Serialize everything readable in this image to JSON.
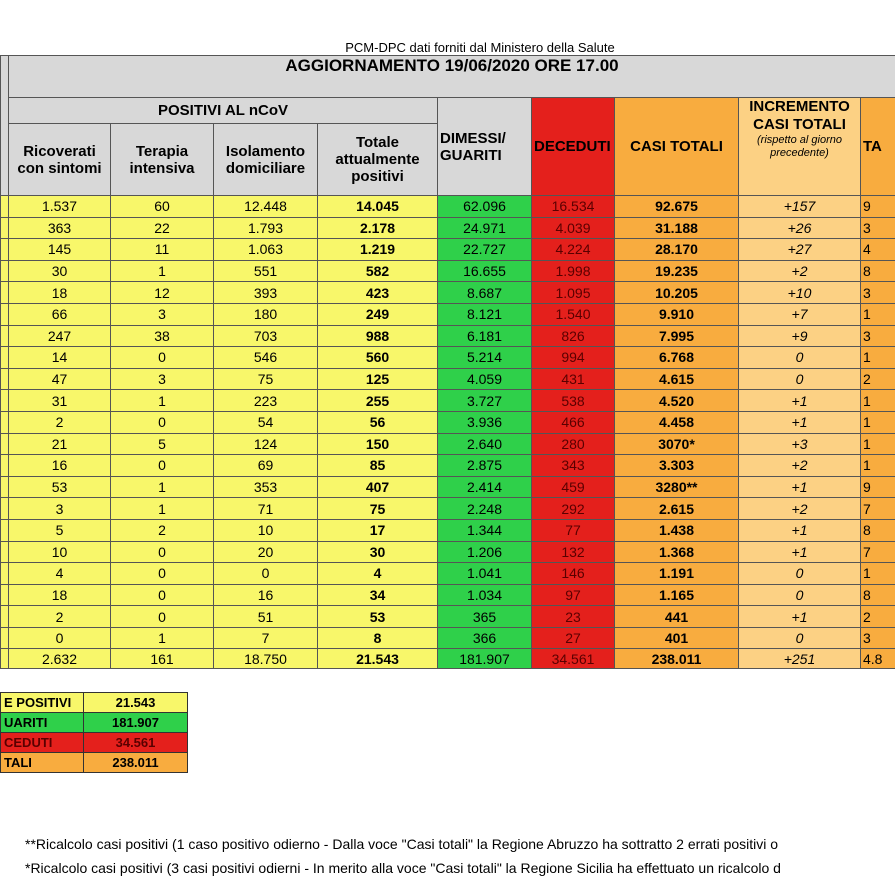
{
  "header": {
    "source": "PCM-DPC dati forniti dal Ministero della Salute",
    "update": "AGGIORNAMENTO 19/06/2020 ORE 17.00"
  },
  "table": {
    "group_header": "POSITIVI AL nCoV",
    "sub_columns": [
      "Ricoverati con sintomi",
      "Terapia intensiva",
      "Isolamento domiciliare",
      "Totale attualmente positivi"
    ],
    "columns": [
      "DIMESSI/ GUARITI",
      "DECEDUTI",
      "CASI TOTALI"
    ],
    "increment_header": {
      "title": "INCREMENTO CASI TOTALI",
      "note": "(rispetto al giorno precedente)"
    },
    "cut_column": "TA",
    "rows": [
      [
        "1.537",
        "60",
        "12.448",
        "14.045",
        "62.096",
        "16.534",
        "92.675",
        "+157",
        "9"
      ],
      [
        "363",
        "22",
        "1.793",
        "2.178",
        "24.971",
        "4.039",
        "31.188",
        "+26",
        "3"
      ],
      [
        "145",
        "11",
        "1.063",
        "1.219",
        "22.727",
        "4.224",
        "28.170",
        "+27",
        "4"
      ],
      [
        "30",
        "1",
        "551",
        "582",
        "16.655",
        "1.998",
        "19.235",
        "+2",
        "8"
      ],
      [
        "18",
        "12",
        "393",
        "423",
        "8.687",
        "1.095",
        "10.205",
        "+10",
        "3"
      ],
      [
        "66",
        "3",
        "180",
        "249",
        "8.121",
        "1.540",
        "9.910",
        "+7",
        "1"
      ],
      [
        "247",
        "38",
        "703",
        "988",
        "6.181",
        "826",
        "7.995",
        "+9",
        "3"
      ],
      [
        "14",
        "0",
        "546",
        "560",
        "5.214",
        "994",
        "6.768",
        "0",
        "1"
      ],
      [
        "47",
        "3",
        "75",
        "125",
        "4.059",
        "431",
        "4.615",
        "0",
        "2"
      ],
      [
        "31",
        "1",
        "223",
        "255",
        "3.727",
        "538",
        "4.520",
        "+1",
        "1"
      ],
      [
        "2",
        "0",
        "54",
        "56",
        "3.936",
        "466",
        "4.458",
        "+1",
        "1"
      ],
      [
        "21",
        "5",
        "124",
        "150",
        "2.640",
        "280",
        "3070*",
        "+3",
        "1"
      ],
      [
        "16",
        "0",
        "69",
        "85",
        "2.875",
        "343",
        "3.303",
        "+2",
        "1"
      ],
      [
        "53",
        "1",
        "353",
        "407",
        "2.414",
        "459",
        "3280**",
        "+1",
        "9"
      ],
      [
        "3",
        "1",
        "71",
        "75",
        "2.248",
        "292",
        "2.615",
        "+2",
        "7"
      ],
      [
        "5",
        "2",
        "10",
        "17",
        "1.344",
        "77",
        "1.438",
        "+1",
        "8"
      ],
      [
        "10",
        "0",
        "20",
        "30",
        "1.206",
        "132",
        "1.368",
        "+1",
        "7"
      ],
      [
        "4",
        "0",
        "0",
        "4",
        "1.041",
        "146",
        "1.191",
        "0",
        "1"
      ],
      [
        "18",
        "0",
        "16",
        "34",
        "1.034",
        "97",
        "1.165",
        "0",
        "8"
      ],
      [
        "2",
        "0",
        "51",
        "53",
        "365",
        "23",
        "441",
        "+1",
        "2"
      ],
      [
        "0",
        "1",
        "7",
        "8",
        "366",
        "27",
        "401",
        "0",
        "3"
      ]
    ],
    "total": [
      "2.632",
      "161",
      "18.750",
      "21.543",
      "181.907",
      "34.561",
      "238.011",
      "+251",
      "4.8"
    ]
  },
  "summary": {
    "rows": [
      [
        "E POSITIVI",
        "21.543"
      ],
      [
        "UARITI",
        "181.907"
      ],
      [
        "CEDUTI",
        "34.561"
      ],
      [
        "TALI",
        "238.011"
      ]
    ]
  },
  "footnotes": [
    "**Ricalcolo casi positivi (1 caso positivo odierno - Dalla voce \"Casi totali\" la Regione Abruzzo ha sottratto  2 errati positivi o",
    "*Ricalcolo casi positivi (3 casi positivi odierni - In merito alla voce \"Casi totali\" la Regione Sicilia ha effettuato un ricalcolo d"
  ]
}
